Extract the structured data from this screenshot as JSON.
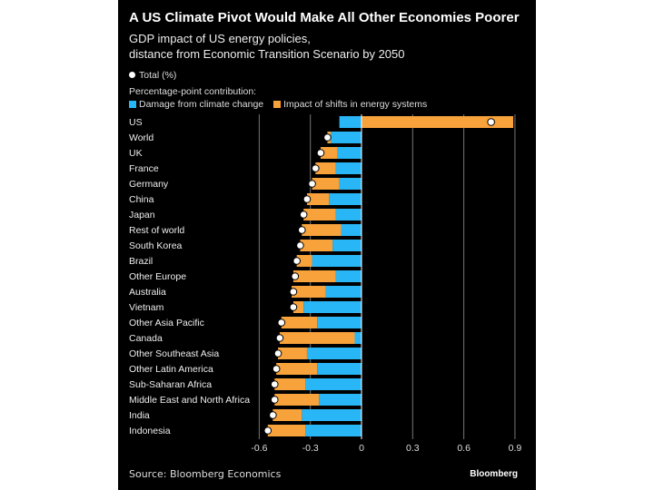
{
  "chart_data": {
    "type": "bar",
    "stacked": true,
    "orientation": "horizontal",
    "title": "A US Climate Pivot Would Make All Other Economies Poorer",
    "subtitle": [
      "GDP impact of US energy policies,",
      "distance from Economic Transition Scenario by 2050"
    ],
    "total_legend": "Total (%)",
    "legend_heading": "Percentage-point contribution:",
    "categories": [
      "US",
      "World",
      "UK",
      "France",
      "Germany",
      "China",
      "Japan",
      "Rest of world",
      "South Korea",
      "Brazil",
      "Other Europe",
      "Australia",
      "Vietnam",
      "Other Asia Pacific",
      "Canada",
      "Other Southeast Asia",
      "Other Latin America",
      "Sub-Saharan Africa",
      "Middle East and North Africa",
      "India",
      "Indonesia"
    ],
    "series": [
      {
        "name": "Damage from climate change",
        "color": "#29b6f6",
        "values": [
          -0.13,
          -0.18,
          -0.14,
          -0.15,
          -0.13,
          -0.19,
          -0.15,
          -0.12,
          -0.17,
          -0.29,
          -0.15,
          -0.21,
          -0.34,
          -0.26,
          -0.04,
          -0.32,
          -0.26,
          -0.33,
          -0.25,
          -0.35,
          -0.33
        ]
      },
      {
        "name": "Impact of shifts in energy systems",
        "color": "#f7a23b",
        "values": [
          0.89,
          -0.02,
          -0.1,
          -0.12,
          -0.16,
          -0.13,
          -0.19,
          -0.23,
          -0.19,
          -0.09,
          -0.25,
          -0.2,
          -0.06,
          -0.21,
          -0.44,
          -0.17,
          -0.24,
          -0.18,
          -0.26,
          -0.17,
          -0.22
        ]
      }
    ],
    "totals": [
      0.76,
      -0.2,
      -0.24,
      -0.27,
      -0.29,
      -0.32,
      -0.34,
      -0.35,
      -0.36,
      -0.38,
      -0.39,
      -0.4,
      -0.4,
      -0.47,
      -0.48,
      -0.49,
      -0.5,
      -0.51,
      -0.51,
      -0.52,
      -0.55
    ],
    "xlim": [
      -0.6,
      0.9
    ],
    "xticks": [
      "-0.6",
      "-0.3",
      "0",
      "0.3",
      "0.6",
      "0.9"
    ],
    "grid": true,
    "legend_placement": "top-left"
  },
  "source": "Source: Bloomberg Economics",
  "brand": "Bloomberg"
}
